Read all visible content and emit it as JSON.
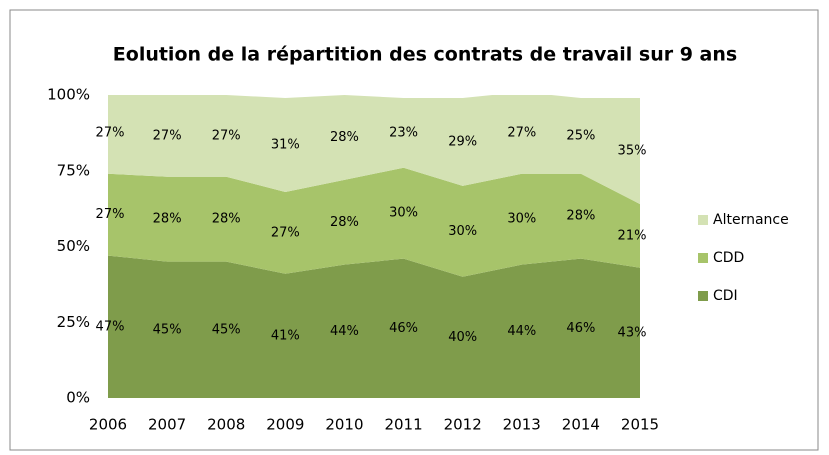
{
  "chart_data": {
    "type": "area",
    "stacked": true,
    "title": "Eolution de la répartition des contrats de travail sur 9 ans",
    "x": [
      2006,
      2007,
      2008,
      2009,
      2010,
      2011,
      2012,
      2013,
      2014,
      2015
    ],
    "series": [
      {
        "name": "CDI",
        "color": "#7f9c4b",
        "values": [
          47,
          45,
          45,
          41,
          44,
          46,
          40,
          44,
          46,
          43
        ],
        "value_labels": [
          "47%",
          "45%",
          "45%",
          "41%",
          "44%",
          "46%",
          "40%",
          "44%",
          "46%",
          "43%"
        ]
      },
      {
        "name": "CDD",
        "color": "#a7c46a",
        "values": [
          27,
          28,
          28,
          27,
          28,
          30,
          30,
          30,
          28,
          21
        ],
        "value_labels": [
          "27%",
          "28%",
          "28%",
          "27%",
          "28%",
          "30%",
          "30%",
          "30%",
          "28%",
          "21%"
        ]
      },
      {
        "name": "Alternance",
        "color": "#d4e2b4",
        "values": [
          27,
          27,
          27,
          31,
          28,
          23,
          29,
          27,
          25,
          35
        ],
        "value_labels": [
          "27%",
          "27%",
          "27%",
          "31%",
          "28%",
          "23%",
          "29%",
          "27%",
          "25%",
          "35%"
        ]
      }
    ],
    "ylim": [
      0,
      100
    ],
    "yticks": [
      {
        "value": 0,
        "label": "0%"
      },
      {
        "value": 25,
        "label": "25%"
      },
      {
        "value": 50,
        "label": "50%"
      },
      {
        "value": 75,
        "label": "75%"
      },
      {
        "value": 100,
        "label": "100%"
      }
    ],
    "legend": "right"
  }
}
